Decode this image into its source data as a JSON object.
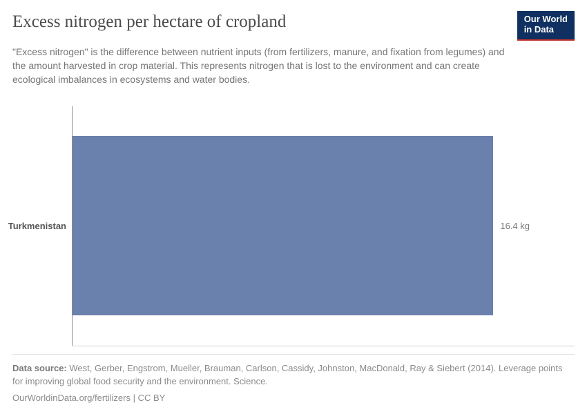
{
  "header": {
    "title": "Excess nitrogen per hectare of cropland",
    "subtitle": "\"Excess nitrogen\" is the difference between nutrient inputs (from fertilizers, manure, and fixation from legumes) and the amount harvested in crop material. This represents nitrogen that is lost to the environment and can create ecological imbalances in ecosystems and water bodies.",
    "logo_line1": "Our World",
    "logo_line2": "in Data"
  },
  "chart": {
    "type": "bar",
    "orientation": "horizontal",
    "categories": [
      "Turkmenistan"
    ],
    "values": [
      16.4
    ],
    "value_labels": [
      "16.4 kg"
    ],
    "bar_color": "#6a80ad",
    "xlim": [
      0,
      18
    ],
    "axis_color": "#8a8a8a",
    "grid_color": "#cfcfcf",
    "background_color": "#ffffff",
    "label_fontsize": 13,
    "title_fontsize": 25,
    "title_font": "serif",
    "bar_fraction_of_plot": 0.92
  },
  "footer": {
    "source_label": "Data source:",
    "source_text": "West, Gerber, Engstrom, Mueller, Brauman, Carlson, Cassidy, Johnston, MacDonald, Ray & Siebert (2014). Leverage points for improving global food security and the environment. Science.",
    "link": "OurWorldinData.org/fertilizers",
    "license": "CC BY",
    "separator": " | "
  },
  "colors": {
    "title_text": "#4b4b4b",
    "body_text": "#757575",
    "footer_text": "#8a8a8a",
    "logo_bg": "#0f3060",
    "logo_underline": "#c13028",
    "logo_text": "#ffffff"
  }
}
